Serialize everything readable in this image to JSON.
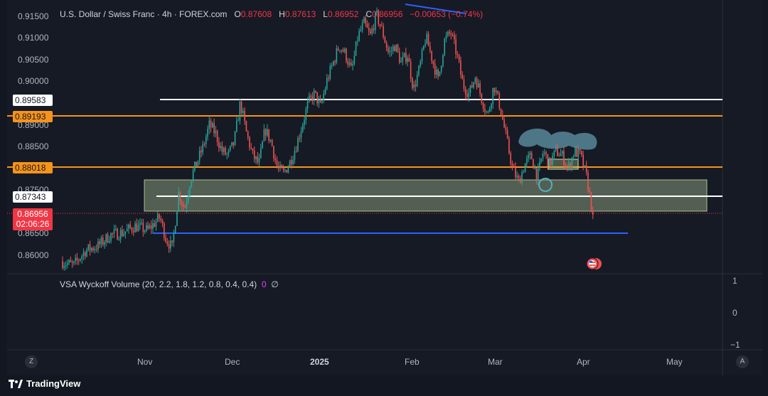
{
  "header": {
    "symbol_title": "U.S. Dollar / Swiss Franc · 4h · FOREX.com",
    "open_key": "O",
    "open_val": "0.87608",
    "high_key": "H",
    "high_val": "0.87613",
    "low_key": "L",
    "low_val": "0.86952",
    "close_key": "C",
    "close_val": "0.86956",
    "change": "−0.00653 (−0.74%)"
  },
  "price_axis": [
    "0.91500",
    "0.91000",
    "0.90500",
    "0.90000",
    "0.89000",
    "0.88500",
    "0.87500",
    "0.86500",
    "0.86000"
  ],
  "price_tags": {
    "white_high": "0.89583",
    "orange_high": "0.89193",
    "orange_low": "0.88018",
    "white_low": "0.87343",
    "current_price": "0.86956",
    "countdown": "02:06:26"
  },
  "time_axis": [
    "Nov",
    "Dec",
    "2025",
    "Feb",
    "Mar",
    "Apr",
    "May"
  ],
  "indicator": {
    "name": "VSA Wyckoff Volume (20, 2.2, 1.8, 1.2, 0.8, 0.4, 0.4)",
    "value_a": "0",
    "value_b": "∅",
    "axis": [
      "1",
      "0",
      "−1"
    ]
  },
  "corner_buttons": {
    "left": "Z",
    "right": "A"
  },
  "brand": {
    "name": "TradingView"
  },
  "colors": {
    "up": "#26a69a",
    "down": "#ef5350",
    "white_line": "#ffffff",
    "orange_line": "#f7931a",
    "blue_line": "#2962ff",
    "zone_fill": "#c5e1a5",
    "price_red": "#f23645"
  },
  "chart_data": {
    "type": "candlestick",
    "symbol": "U.S. Dollar / Swiss Franc",
    "x": [
      "Nov",
      "Dec",
      "2025",
      "Feb",
      "Mar",
      "Apr",
      "May"
    ],
    "ylim": [
      0.8565,
      0.917
    ],
    "levels": [
      0.89583,
      0.89193,
      0.88018,
      0.87343,
      0.865
    ],
    "last_price": 0.86956,
    "path": [
      [
        0.0,
        0.859
      ],
      [
        0.02,
        0.858
      ],
      [
        0.04,
        0.8615
      ],
      [
        0.06,
        0.8625
      ],
      [
        0.08,
        0.865
      ],
      [
        0.1,
        0.8655
      ],
      [
        0.12,
        0.867
      ],
      [
        0.14,
        0.866
      ],
      [
        0.16,
        0.869
      ],
      [
        0.17,
        0.864
      ],
      [
        0.18,
        0.862
      ],
      [
        0.19,
        0.8745
      ],
      [
        0.2,
        0.871
      ],
      [
        0.21,
        0.878
      ],
      [
        0.22,
        0.8815
      ],
      [
        0.23,
        0.885
      ],
      [
        0.24,
        0.89
      ],
      [
        0.25,
        0.888
      ],
      [
        0.26,
        0.884
      ],
      [
        0.27,
        0.883
      ],
      [
        0.28,
        0.886
      ],
      [
        0.29,
        0.895
      ],
      [
        0.3,
        0.888
      ],
      [
        0.31,
        0.883
      ],
      [
        0.32,
        0.881
      ],
      [
        0.33,
        0.889
      ],
      [
        0.34,
        0.886
      ],
      [
        0.35,
        0.88
      ],
      [
        0.36,
        0.879
      ],
      [
        0.37,
        0.8815
      ],
      [
        0.38,
        0.885
      ],
      [
        0.39,
        0.89
      ],
      [
        0.4,
        0.895
      ],
      [
        0.41,
        0.897
      ],
      [
        0.42,
        0.894
      ],
      [
        0.43,
        0.9
      ],
      [
        0.44,
        0.904
      ],
      [
        0.45,
        0.908
      ],
      [
        0.46,
        0.906
      ],
      [
        0.47,
        0.902
      ],
      [
        0.48,
        0.91
      ],
      [
        0.49,
        0.913
      ],
      [
        0.5,
        0.91
      ],
      [
        0.51,
        0.915
      ],
      [
        0.52,
        0.911
      ],
      [
        0.53,
        0.906
      ],
      [
        0.54,
        0.908
      ],
      [
        0.55,
        0.904
      ],
      [
        0.56,
        0.906
      ],
      [
        0.57,
        0.898
      ],
      [
        0.58,
        0.903
      ],
      [
        0.59,
        0.91
      ],
      [
        0.6,
        0.905
      ],
      [
        0.61,
        0.9
      ],
      [
        0.62,
        0.909
      ],
      [
        0.63,
        0.911
      ],
      [
        0.64,
        0.906
      ],
      [
        0.65,
        0.899
      ],
      [
        0.66,
        0.897
      ],
      [
        0.67,
        0.901
      ],
      [
        0.68,
        0.896
      ],
      [
        0.69,
        0.892
      ],
      [
        0.7,
        0.899
      ],
      [
        0.71,
        0.894
      ],
      [
        0.72,
        0.887
      ],
      [
        0.73,
        0.88
      ],
      [
        0.74,
        0.877
      ],
      [
        0.75,
        0.881
      ],
      [
        0.76,
        0.883
      ],
      [
        0.77,
        0.878
      ],
      [
        0.78,
        0.884
      ],
      [
        0.79,
        0.881
      ],
      [
        0.8,
        0.884
      ],
      [
        0.81,
        0.883
      ],
      [
        0.82,
        0.88
      ],
      [
        0.83,
        0.884
      ],
      [
        0.84,
        0.883
      ],
      [
        0.85,
        0.878
      ],
      [
        0.86,
        0.8696
      ]
    ]
  }
}
